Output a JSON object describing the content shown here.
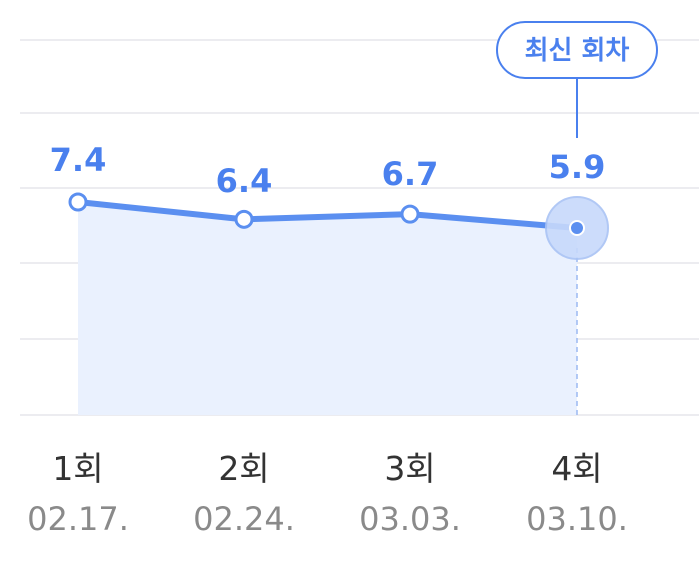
{
  "chart_data": {
    "type": "line",
    "categories": [
      "1회",
      "2회",
      "3회",
      "4회"
    ],
    "dates": [
      "02.17.",
      "02.24.",
      "03.03.",
      "03.10."
    ],
    "values": [
      7.4,
      6.4,
      6.7,
      5.9
    ],
    "data_labels": [
      "7.4",
      "6.4",
      "6.7",
      "5.9"
    ],
    "title": "",
    "xlabel": "",
    "ylabel": "",
    "grid": true,
    "area_fill": true,
    "highlight": {
      "index": 3,
      "label": "최신 회차"
    },
    "colors": {
      "line": "#5b8ff0",
      "label": "#4a80ee",
      "area": "#eaf1fe"
    }
  }
}
